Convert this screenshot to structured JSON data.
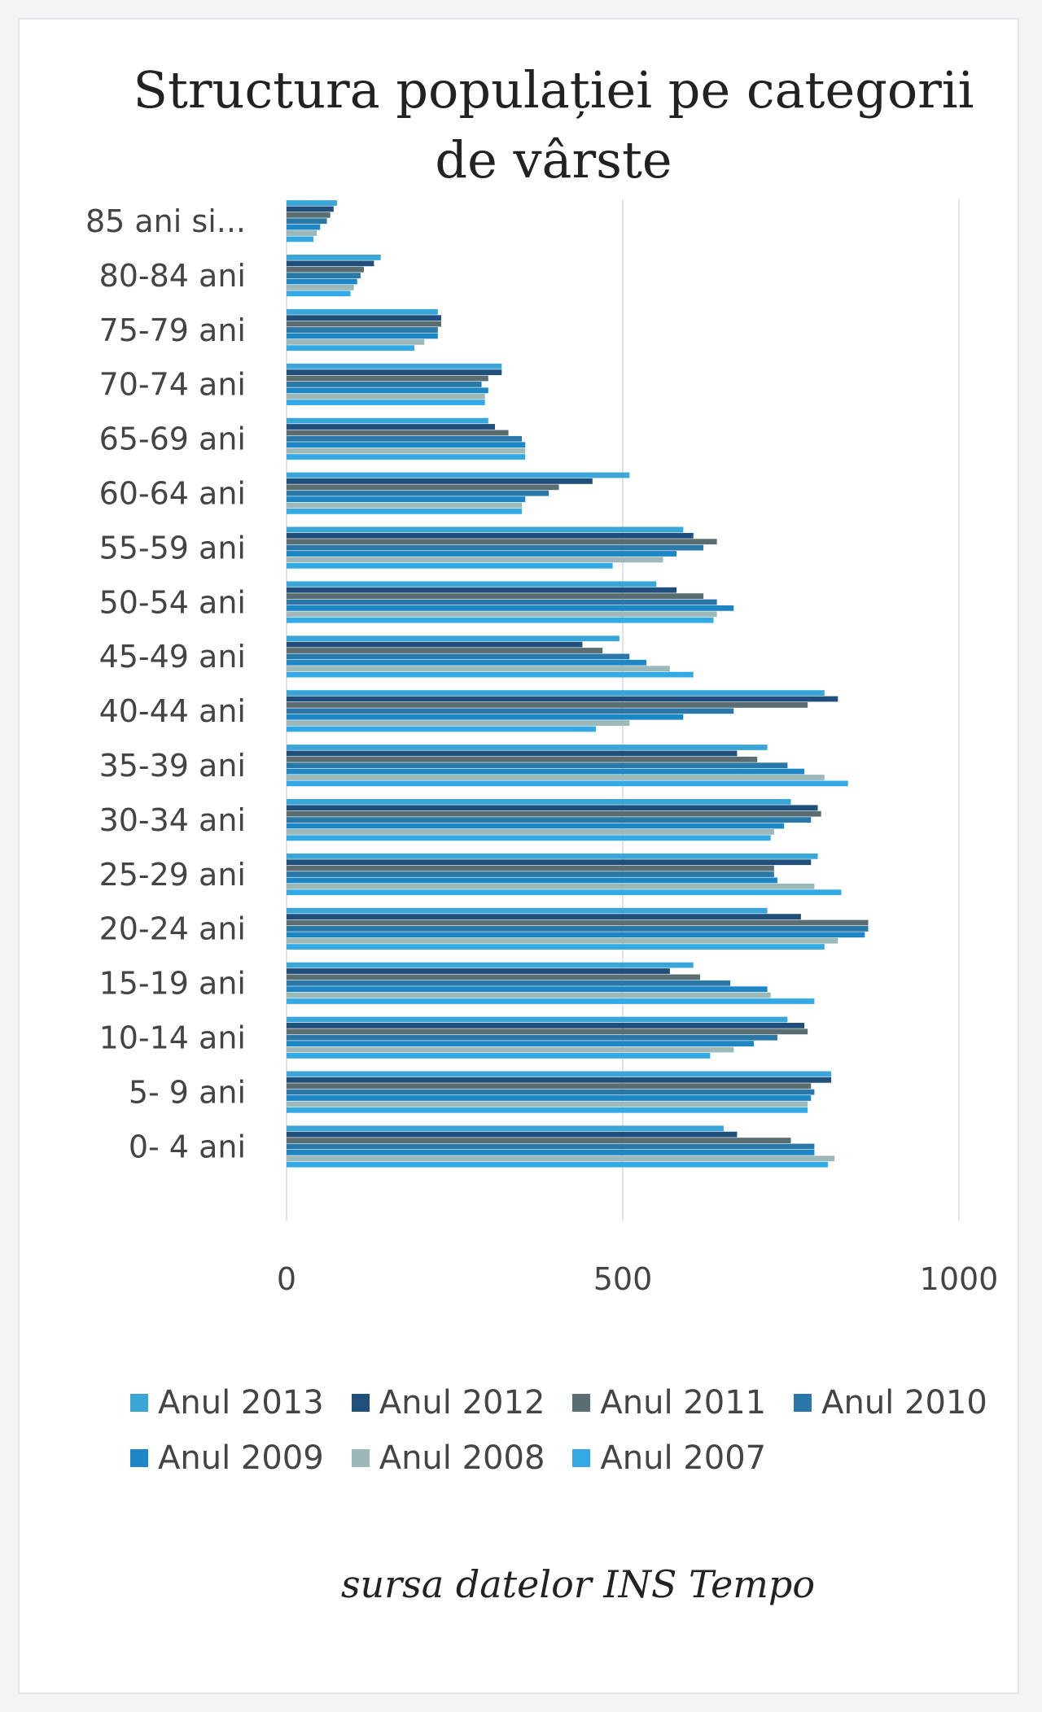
{
  "chart_data": {
    "type": "bar",
    "orientation": "horizontal",
    "title": "Structura populației pe categorii de vârste",
    "categories": [
      "85 ani si...",
      "80-84 ani",
      "75-79 ani",
      "70-74 ani",
      "65-69 ani",
      "60-64 ani",
      "55-59 ani",
      "50-54 ani",
      "45-49 ani",
      "40-44 ani",
      "35-39 ani",
      "30-34 ani",
      "25-29 ani",
      "20-24 ani",
      "15-19 ani",
      "10-14 ani",
      "5- 9 ani",
      "0- 4 ani"
    ],
    "series": [
      {
        "name": "Anul 2013",
        "color": "#3aa6d8",
        "values": [
          75,
          140,
          225,
          320,
          300,
          510,
          590,
          550,
          495,
          800,
          715,
          750,
          790,
          715,
          605,
          745,
          810,
          650
        ]
      },
      {
        "name": "Anul 2012",
        "color": "#1f4f7a",
        "values": [
          70,
          130,
          230,
          320,
          310,
          455,
          605,
          580,
          440,
          820,
          670,
          790,
          780,
          765,
          570,
          770,
          810,
          670
        ]
      },
      {
        "name": "Anul 2011",
        "color": "#5a6e72",
        "values": [
          65,
          115,
          230,
          300,
          330,
          405,
          640,
          620,
          470,
          775,
          700,
          795,
          725,
          865,
          615,
          775,
          780,
          750
        ]
      },
      {
        "name": "Anul 2010",
        "color": "#2a78a8",
        "values": [
          60,
          110,
          225,
          290,
          350,
          390,
          620,
          640,
          510,
          665,
          745,
          780,
          725,
          865,
          660,
          730,
          785,
          785
        ]
      },
      {
        "name": "Anul 2009",
        "color": "#1d86c4",
        "values": [
          50,
          105,
          225,
          300,
          355,
          355,
          580,
          665,
          535,
          590,
          770,
          740,
          730,
          860,
          715,
          695,
          780,
          785
        ]
      },
      {
        "name": "Anul 2008",
        "color": "#9cb8b8",
        "values": [
          45,
          100,
          205,
          295,
          355,
          350,
          560,
          640,
          570,
          510,
          800,
          725,
          785,
          820,
          720,
          665,
          775,
          815
        ]
      },
      {
        "name": "Anul 2007",
        "color": "#33a9e6",
        "values": [
          40,
          95,
          190,
          295,
          355,
          350,
          485,
          635,
          605,
          460,
          835,
          720,
          825,
          800,
          785,
          630,
          775,
          805
        ]
      }
    ],
    "x_ticks": [
      "0",
      "500",
      "1000"
    ],
    "xlim": [
      0,
      1000
    ],
    "grid": true,
    "legend_position": "bottom"
  },
  "legend": [
    {
      "label": "Anul 2013",
      "color": "#3aa6d8"
    },
    {
      "label": "Anul 2012",
      "color": "#1f4f7a"
    },
    {
      "label": "Anul 2011",
      "color": "#5a6e72"
    },
    {
      "label": "Anul 2010",
      "color": "#2a78a8"
    },
    {
      "label": "Anul 2009",
      "color": "#1d86c4"
    },
    {
      "label": "Anul 2008",
      "color": "#9cb8b8"
    },
    {
      "label": "Anul 2007",
      "color": "#33a9e6"
    }
  ],
  "source_note": "sursa datelor INS Tempo"
}
